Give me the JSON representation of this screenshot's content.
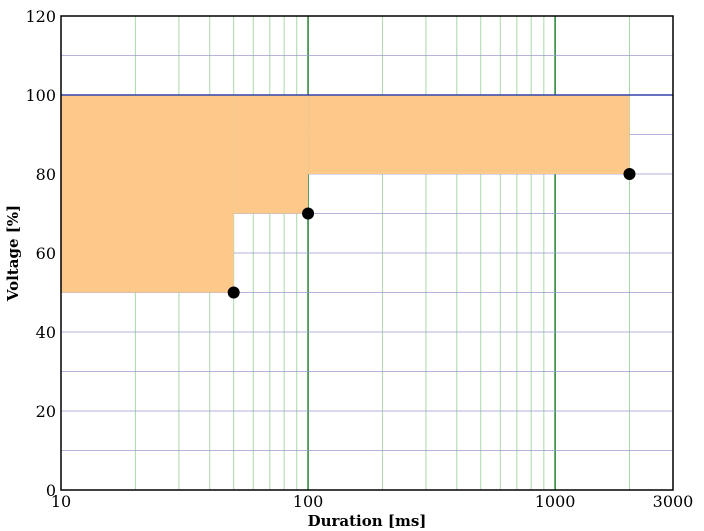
{
  "chart_data": {
    "type": "area",
    "title": "",
    "xlabel": "Duration [ms]",
    "ylabel": "Voltage [%]",
    "x_scale": "log",
    "xlim": [
      10,
      3000
    ],
    "ylim": [
      0,
      120
    ],
    "x_ticks": [
      10,
      100,
      1000,
      3000
    ],
    "x_tick_labels": [
      "10",
      "100",
      "1000",
      "3000"
    ],
    "y_ticks": [
      0,
      20,
      40,
      60,
      80,
      100,
      120
    ],
    "y_tick_labels": [
      "0",
      "20",
      "40",
      "60",
      "80",
      "100",
      "120"
    ],
    "grid": true,
    "series": [
      {
        "kind": "step-fill",
        "steps": [
          {
            "x_start": 10,
            "x_end": 50,
            "y_low": 50,
            "y_high": 100
          },
          {
            "x_start": 50,
            "x_end": 100,
            "y_low": 70,
            "y_high": 100
          },
          {
            "x_start": 100,
            "x_end": 2000,
            "y_low": 80,
            "y_high": 100
          }
        ],
        "color": "#fdc98a"
      },
      {
        "kind": "points",
        "points": [
          {
            "x": 50,
            "y": 50
          },
          {
            "x": 100,
            "y": 70
          },
          {
            "x": 2000,
            "y": 80
          }
        ],
        "color": "#000000"
      }
    ],
    "reference_line": {
      "y": 100,
      "color": "#3344aa"
    },
    "colors": {
      "fill": "#fdc98a",
      "vertical_grid": "#a8d8a8",
      "vertical_grid_major": "#2e8b3e",
      "horizontal_grid": "#9a9ad0",
      "marker": "#000000"
    }
  }
}
